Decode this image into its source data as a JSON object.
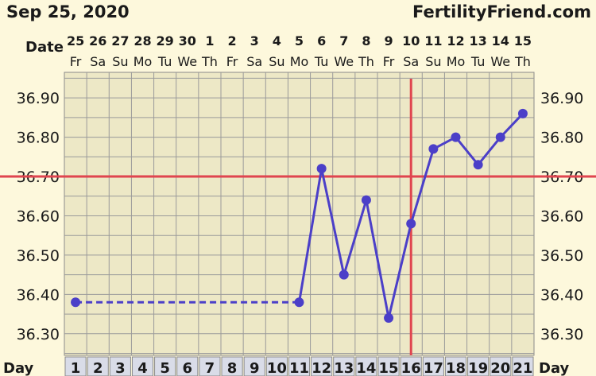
{
  "header": {
    "date": "Sep 25, 2020",
    "site": "FertilityFriend.com",
    "date_row_label": "Date",
    "day_row_label": "Day"
  },
  "colors": {
    "background": "#fdf8dc",
    "plot_background": "#ede8c6",
    "grid": "#9a9a9a",
    "series": "#4b3fc8",
    "threshold": "#e0454f",
    "day_cell": "#d9dce8"
  },
  "chart_data": {
    "type": "line",
    "x_label": "Day",
    "days": [
      1,
      2,
      3,
      4,
      5,
      6,
      7,
      8,
      9,
      10,
      11,
      12,
      13,
      14,
      15,
      16,
      17,
      18,
      19,
      20,
      21
    ],
    "dates": [
      "25",
      "26",
      "27",
      "28",
      "29",
      "30",
      "1",
      "2",
      "3",
      "4",
      "5",
      "6",
      "7",
      "8",
      "9",
      "10",
      "11",
      "12",
      "13",
      "14",
      "15"
    ],
    "weekdays": [
      "Fr",
      "Sa",
      "Su",
      "Mo",
      "Tu",
      "We",
      "Th",
      "Fr",
      "Sa",
      "Su",
      "Mo",
      "Tu",
      "We",
      "Th",
      "Fr",
      "Sa",
      "Su",
      "Mo",
      "Tu",
      "We",
      "Th"
    ],
    "y_ticks": [
      "36.90",
      "36.80",
      "36.70",
      "36.60",
      "36.50",
      "36.40",
      "36.30"
    ],
    "ylim": [
      36.245,
      36.965
    ],
    "series": [
      {
        "values": [
          36.38,
          null,
          null,
          null,
          null,
          null,
          null,
          null,
          null,
          null,
          36.38,
          36.72,
          36.45,
          36.64,
          36.34,
          36.58,
          36.77,
          36.8,
          36.73,
          36.8,
          36.86
        ],
        "dashed_gap": [
          1,
          11
        ]
      }
    ],
    "coverline": 36.7,
    "ovulation_line_after_day": 15.5
  }
}
